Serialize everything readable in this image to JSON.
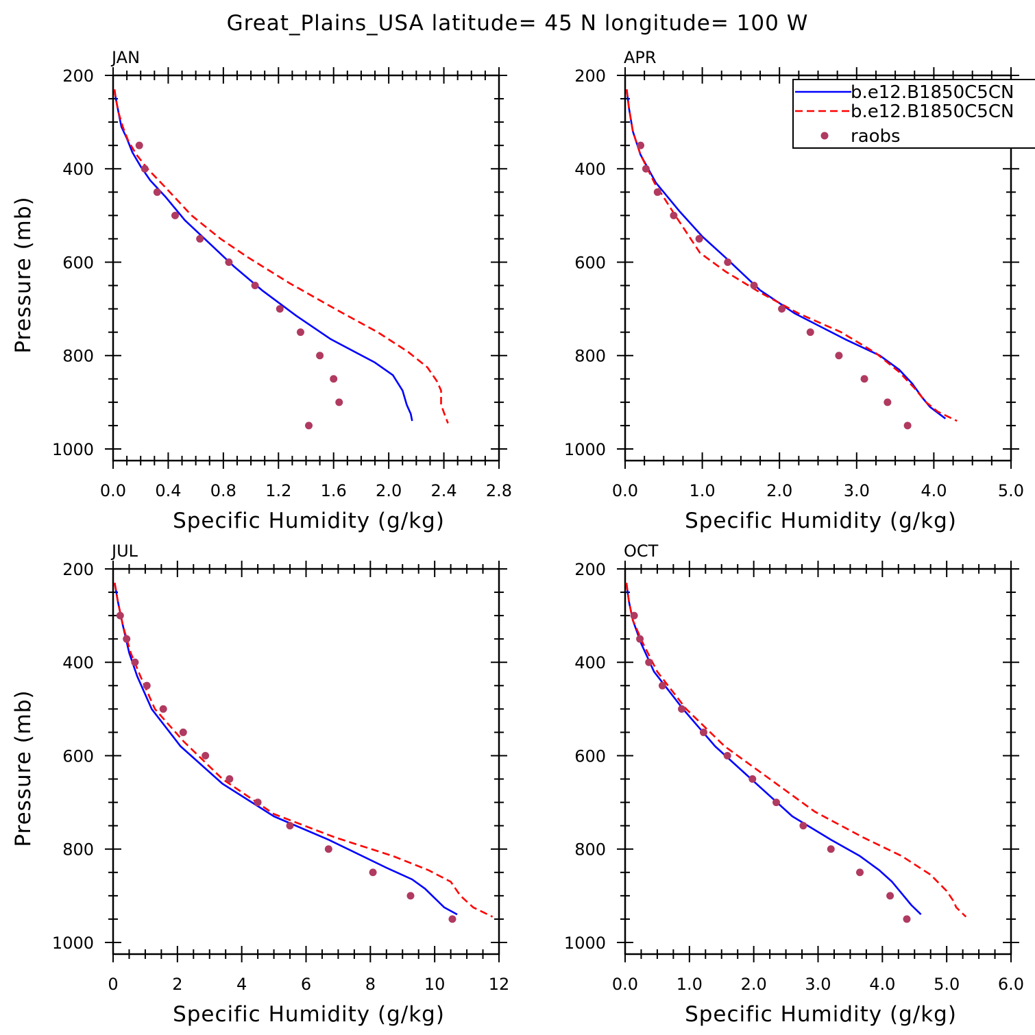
{
  "title": "Great_Plains_USA  latitude= 45 N longitude= 100 W",
  "colors": {
    "model1": "#0000ff",
    "model2": "#ff0000",
    "raobs": "#b03a60",
    "axis": "#000000"
  },
  "legend": {
    "items": [
      {
        "label": "b.e12.B1850C5CN",
        "style": "solid",
        "series": "model1"
      },
      {
        "label": "b.e12.B1850C5CN",
        "style": "dashed",
        "series": "model2"
      },
      {
        "label": "raobs",
        "style": "marker",
        "series": "raobs"
      }
    ]
  },
  "chart_data": [
    {
      "type": "line",
      "panel": "JAN",
      "xlabel": "Specific Humidity (g/kg)",
      "ylabel": "Pressure (mb)",
      "xlim": [
        0,
        2.8
      ],
      "ylim": [
        1000,
        200
      ],
      "y_inverted": true,
      "xticks": [
        0.0,
        0.4,
        0.8,
        1.2,
        1.6,
        2.0,
        2.4,
        2.8
      ],
      "xtick_labels": [
        "0.0",
        "0.4",
        "0.8",
        "1.2",
        "1.6",
        "2.0",
        "2.4",
        "2.8"
      ],
      "yticks": [
        200,
        400,
        600,
        800,
        1000
      ],
      "ytick_labels": [
        "200",
        "400",
        "600",
        "800",
        "1000"
      ],
      "series": [
        {
          "name": "b.e12.B1850C5CN",
          "key": "model1",
          "points": [
            [
              0.01,
              230
            ],
            [
              0.02,
              250
            ],
            [
              0.04,
              280
            ],
            [
              0.06,
              310
            ],
            [
              0.1,
              335
            ],
            [
              0.14,
              365
            ],
            [
              0.2,
              395
            ],
            [
              0.27,
              425
            ],
            [
              0.38,
              460
            ],
            [
              0.52,
              510
            ],
            [
              0.7,
              560
            ],
            [
              0.88,
              610
            ],
            [
              1.08,
              660
            ],
            [
              1.33,
              715
            ],
            [
              1.58,
              765
            ],
            [
              1.9,
              815
            ],
            [
              2.03,
              842
            ],
            [
              2.1,
              875
            ],
            [
              2.13,
              905
            ],
            [
              2.16,
              925
            ],
            [
              2.17,
              940
            ]
          ]
        },
        {
          "name": "b.e12.B1850C5CN",
          "key": "model2",
          "points": [
            [
              0.01,
              230
            ],
            [
              0.02,
              250
            ],
            [
              0.04,
              280
            ],
            [
              0.07,
              310
            ],
            [
              0.11,
              340
            ],
            [
              0.17,
              370
            ],
            [
              0.25,
              400
            ],
            [
              0.38,
              440
            ],
            [
              0.57,
              500
            ],
            [
              0.78,
              550
            ],
            [
              0.98,
              590
            ],
            [
              1.28,
              645
            ],
            [
              1.61,
              700
            ],
            [
              1.92,
              750
            ],
            [
              2.14,
              792
            ],
            [
              2.28,
              825
            ],
            [
              2.35,
              855
            ],
            [
              2.38,
              875
            ],
            [
              2.38,
              905
            ],
            [
              2.41,
              930
            ],
            [
              2.43,
              945
            ]
          ]
        },
        {
          "name": "raobs",
          "key": "raobs",
          "points": [
            [
              0.19,
              350
            ],
            [
              0.23,
              400
            ],
            [
              0.32,
              450
            ],
            [
              0.45,
              500
            ],
            [
              0.63,
              550
            ],
            [
              0.84,
              600
            ],
            [
              1.03,
              650
            ],
            [
              1.21,
              700
            ],
            [
              1.36,
              750
            ],
            [
              1.5,
              800
            ],
            [
              1.6,
              850
            ],
            [
              1.64,
              900
            ],
            [
              1.42,
              950
            ]
          ]
        }
      ]
    },
    {
      "type": "line",
      "panel": "APR",
      "xlabel": "Specific Humidity (g/kg)",
      "ylabel": "",
      "xlim": [
        0,
        5
      ],
      "ylim": [
        1000,
        200
      ],
      "y_inverted": true,
      "xticks": [
        0.0,
        1.0,
        2.0,
        3.0,
        4.0,
        5.0
      ],
      "xtick_labels": [
        "0.0",
        "1.0",
        "2.0",
        "3.0",
        "4.0",
        "5.0"
      ],
      "yticks": [
        200,
        400,
        600,
        800,
        1000
      ],
      "ytick_labels": [
        "200",
        "400",
        "600",
        "800",
        "1000"
      ],
      "series": [
        {
          "name": "b.e12.B1850C5CN",
          "key": "model1",
          "points": [
            [
              0.02,
              230
            ],
            [
              0.05,
              270
            ],
            [
              0.1,
              320
            ],
            [
              0.2,
              370
            ],
            [
              0.4,
              430
            ],
            [
              0.7,
              490
            ],
            [
              1.0,
              545
            ],
            [
              1.3,
              590
            ],
            [
              1.75,
              660
            ],
            [
              2.2,
              710
            ],
            [
              2.85,
              765
            ],
            [
              3.3,
              800
            ],
            [
              3.55,
              830
            ],
            [
              3.72,
              860
            ],
            [
              3.85,
              890
            ],
            [
              3.95,
              910
            ],
            [
              4.15,
              935
            ]
          ]
        },
        {
          "name": "b.e12.B1850C5CN",
          "key": "model2",
          "points": [
            [
              0.02,
              230
            ],
            [
              0.05,
              270
            ],
            [
              0.1,
              320
            ],
            [
              0.2,
              370
            ],
            [
              0.38,
              430
            ],
            [
              0.65,
              500
            ],
            [
              0.97,
              580
            ],
            [
              1.3,
              620
            ],
            [
              1.75,
              665
            ],
            [
              2.25,
              710
            ],
            [
              2.8,
              750
            ],
            [
              3.25,
              795
            ],
            [
              3.55,
              835
            ],
            [
              3.75,
              870
            ],
            [
              3.9,
              900
            ],
            [
              4.05,
              920
            ],
            [
              4.3,
              940
            ]
          ]
        },
        {
          "name": "raobs",
          "key": "raobs",
          "points": [
            [
              0.2,
              350
            ],
            [
              0.27,
              400
            ],
            [
              0.42,
              450
            ],
            [
              0.63,
              500
            ],
            [
              0.96,
              550
            ],
            [
              1.33,
              600
            ],
            [
              1.67,
              650
            ],
            [
              2.03,
              700
            ],
            [
              2.4,
              750
            ],
            [
              2.77,
              800
            ],
            [
              3.1,
              850
            ],
            [
              3.4,
              900
            ],
            [
              3.66,
              950
            ]
          ]
        }
      ]
    },
    {
      "type": "line",
      "panel": "JUL",
      "xlabel": "Specific Humidity (g/kg)",
      "ylabel": "Pressure (mb)",
      "xlim": [
        0,
        12
      ],
      "ylim": [
        1000,
        200
      ],
      "y_inverted": true,
      "xticks": [
        0,
        2,
        4,
        6,
        8,
        10,
        12
      ],
      "xtick_labels": [
        "0",
        "2",
        "4",
        "6",
        "8",
        "10",
        "12"
      ],
      "yticks": [
        200,
        400,
        600,
        800,
        1000
      ],
      "ytick_labels": [
        "200",
        "400",
        "600",
        "800",
        "1000"
      ],
      "series": [
        {
          "name": "b.e12.B1850C5CN",
          "key": "model1",
          "points": [
            [
              0.05,
              230
            ],
            [
              0.15,
              270
            ],
            [
              0.3,
              320
            ],
            [
              0.5,
              380
            ],
            [
              0.75,
              430
            ],
            [
              1.2,
              500
            ],
            [
              2.1,
              580
            ],
            [
              3.4,
              660
            ],
            [
              5.0,
              730
            ],
            [
              6.7,
              780
            ],
            [
              8.5,
              840
            ],
            [
              9.3,
              865
            ],
            [
              9.7,
              885
            ],
            [
              10.0,
              905
            ],
            [
              10.3,
              925
            ],
            [
              10.7,
              940
            ]
          ]
        },
        {
          "name": "b.e12.B1850C5CN",
          "key": "model2",
          "points": [
            [
              0.05,
              230
            ],
            [
              0.15,
              270
            ],
            [
              0.3,
              320
            ],
            [
              0.55,
              380
            ],
            [
              0.85,
              430
            ],
            [
              1.3,
              500
            ],
            [
              2.2,
              570
            ],
            [
              3.4,
              650
            ],
            [
              5.0,
              725
            ],
            [
              6.9,
              775
            ],
            [
              8.7,
              815
            ],
            [
              9.8,
              845
            ],
            [
              10.5,
              870
            ],
            [
              10.8,
              900
            ],
            [
              11.2,
              925
            ],
            [
              11.8,
              945
            ]
          ]
        },
        {
          "name": "raobs",
          "key": "raobs",
          "points": [
            [
              0.22,
              300
            ],
            [
              0.42,
              350
            ],
            [
              0.68,
              400
            ],
            [
              1.05,
              450
            ],
            [
              1.56,
              500
            ],
            [
              2.18,
              550
            ],
            [
              2.87,
              600
            ],
            [
              3.62,
              650
            ],
            [
              4.5,
              700
            ],
            [
              5.5,
              750
            ],
            [
              6.7,
              800
            ],
            [
              8.08,
              850
            ],
            [
              9.25,
              900
            ],
            [
              10.55,
              950
            ]
          ]
        }
      ]
    },
    {
      "type": "line",
      "panel": "OCT",
      "xlabel": "Specific Humidity (g/kg)",
      "ylabel": "",
      "xlim": [
        0,
        6
      ],
      "ylim": [
        1000,
        200
      ],
      "y_inverted": true,
      "xticks": [
        0.0,
        1.0,
        2.0,
        3.0,
        4.0,
        5.0,
        6.0
      ],
      "xtick_labels": [
        "0.0",
        "1.0",
        "2.0",
        "3.0",
        "4.0",
        "5.0",
        "6.0"
      ],
      "yticks": [
        200,
        400,
        600,
        800,
        1000
      ],
      "ytick_labels": [
        "200",
        "400",
        "600",
        "800",
        "1000"
      ],
      "series": [
        {
          "name": "b.e12.B1850C5CN",
          "key": "model1",
          "points": [
            [
              0.02,
              230
            ],
            [
              0.06,
              270
            ],
            [
              0.12,
              310
            ],
            [
              0.25,
              360
            ],
            [
              0.45,
              420
            ],
            [
              0.9,
              500
            ],
            [
              1.4,
              580
            ],
            [
              2.0,
              655
            ],
            [
              2.6,
              730
            ],
            [
              3.2,
              780
            ],
            [
              3.65,
              815
            ],
            [
              3.95,
              845
            ],
            [
              4.15,
              870
            ],
            [
              4.3,
              895
            ],
            [
              4.45,
              920
            ],
            [
              4.6,
              940
            ]
          ]
        },
        {
          "name": "b.e12.B1850C5CN",
          "key": "model2",
          "points": [
            [
              0.02,
              230
            ],
            [
              0.06,
              270
            ],
            [
              0.12,
              310
            ],
            [
              0.28,
              360
            ],
            [
              0.5,
              420
            ],
            [
              0.95,
              500
            ],
            [
              1.55,
              580
            ],
            [
              2.25,
              650
            ],
            [
              2.95,
              720
            ],
            [
              3.7,
              775
            ],
            [
              4.3,
              815
            ],
            [
              4.75,
              855
            ],
            [
              5.0,
              890
            ],
            [
              5.1,
              910
            ],
            [
              5.15,
              925
            ],
            [
              5.3,
              945
            ]
          ]
        },
        {
          "name": "raobs",
          "key": "raobs",
          "points": [
            [
              0.14,
              300
            ],
            [
              0.23,
              350
            ],
            [
              0.37,
              400
            ],
            [
              0.58,
              450
            ],
            [
              0.88,
              500
            ],
            [
              1.22,
              550
            ],
            [
              1.59,
              600
            ],
            [
              1.98,
              650
            ],
            [
              2.35,
              700
            ],
            [
              2.77,
              750
            ],
            [
              3.2,
              800
            ],
            [
              3.65,
              850
            ],
            [
              4.12,
              900
            ],
            [
              4.38,
              950
            ]
          ]
        }
      ]
    }
  ]
}
